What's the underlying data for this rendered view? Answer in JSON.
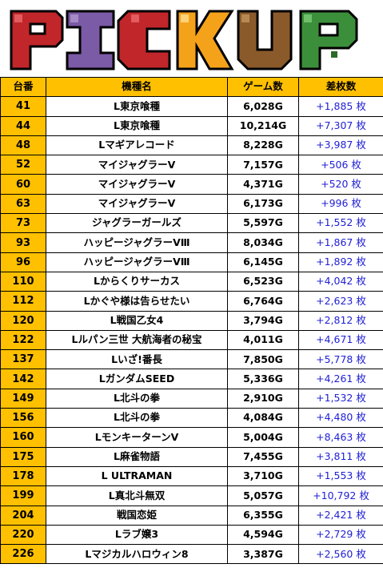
{
  "banner": {
    "title": "PICKUP"
  },
  "headers": {
    "machine_no": "台番",
    "machine_name": "機種名",
    "games": "ゲーム数",
    "diff": "差枚数"
  },
  "rows": [
    {
      "no": "41",
      "name": "L東京喰種",
      "games": "6,028G",
      "diff": "+1,885 枚"
    },
    {
      "no": "44",
      "name": "L東京喰種",
      "games": "10,214G",
      "diff": "+7,307 枚"
    },
    {
      "no": "48",
      "name": "Lマギアレコード",
      "games": "8,228G",
      "diff": "+3,987 枚"
    },
    {
      "no": "52",
      "name": "マイジャグラーV",
      "games": "7,157G",
      "diff": "+506 枚"
    },
    {
      "no": "60",
      "name": "マイジャグラーV",
      "games": "4,371G",
      "diff": "+520 枚"
    },
    {
      "no": "63",
      "name": "マイジャグラーV",
      "games": "6,173G",
      "diff": "+996 枚"
    },
    {
      "no": "73",
      "name": "ジャグラーガールズ",
      "games": "5,597G",
      "diff": "+1,552 枚"
    },
    {
      "no": "93",
      "name": "ハッピージャグラーVⅢ",
      "games": "8,034G",
      "diff": "+1,867 枚"
    },
    {
      "no": "96",
      "name": "ハッピージャグラーVⅢ",
      "games": "6,145G",
      "diff": "+1,892 枚"
    },
    {
      "no": "110",
      "name": "Lからくりサーカス",
      "games": "6,523G",
      "diff": "+4,042 枚"
    },
    {
      "no": "112",
      "name": "Lかぐや様は告らせたい",
      "games": "6,764G",
      "diff": "+2,623 枚"
    },
    {
      "no": "120",
      "name": "L戦国乙女4",
      "games": "3,794G",
      "diff": "+2,812 枚"
    },
    {
      "no": "122",
      "name": "Lルパン三世 大航海者の秘宝",
      "games": "4,011G",
      "diff": "+4,671 枚"
    },
    {
      "no": "137",
      "name": "Lいざ!番長",
      "games": "7,850G",
      "diff": "+5,778 枚"
    },
    {
      "no": "142",
      "name": "LガンダムSEED",
      "games": "5,336G",
      "diff": "+4,261 枚"
    },
    {
      "no": "149",
      "name": "L北斗の拳",
      "games": "2,910G",
      "diff": "+1,532 枚"
    },
    {
      "no": "156",
      "name": "L北斗の拳",
      "games": "4,084G",
      "diff": "+4,480 枚"
    },
    {
      "no": "160",
      "name": "LモンキーターンV",
      "games": "5,004G",
      "diff": "+8,463 枚"
    },
    {
      "no": "175",
      "name": "L麻雀物語",
      "games": "7,455G",
      "diff": "+3,811 枚"
    },
    {
      "no": "178",
      "name": "L ULTRAMAN",
      "games": "3,710G",
      "diff": "+1,553 枚"
    },
    {
      "no": "199",
      "name": "L真北斗無双",
      "games": "5,057G",
      "diff": "+10,792 枚"
    },
    {
      "no": "204",
      "name": "戦国恋姫",
      "games": "6,355G",
      "diff": "+2,421 枚"
    },
    {
      "no": "220",
      "name": "Lラブ嬢3",
      "games": "4,594G",
      "diff": "+2,729 枚"
    },
    {
      "no": "226",
      "name": "Lマジカルハロウィン8",
      "games": "3,387G",
      "diff": "+2,560 枚"
    }
  ],
  "colors": {
    "header_bg": "#ffc000",
    "diff_text": "#1f1fd6",
    "letter_p": "#c0262a",
    "letter_i": "#7b5aa6",
    "letter_c": "#c0262a",
    "letter_k": "#f5a21b",
    "letter_u": "#8b5a2b",
    "letter_p2": "#3c8f3a"
  }
}
